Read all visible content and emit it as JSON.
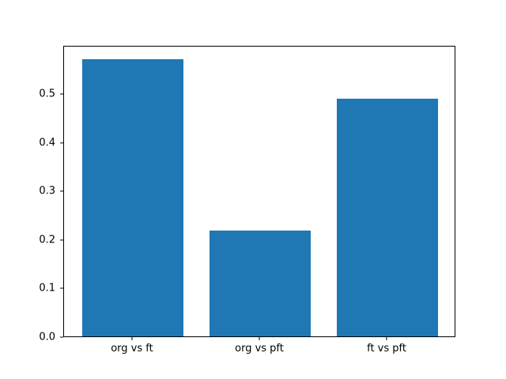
{
  "figure": {
    "background": "#ffffff",
    "plot_border_color": "#000000"
  },
  "chart_data": {
    "type": "bar",
    "title": "",
    "xlabel": "",
    "ylabel": "",
    "categories": [
      "org vs ft",
      "org vs pft",
      "ft vs pft"
    ],
    "values": [
      0.57,
      0.218,
      0.488
    ],
    "bar_color": "#1f77b4",
    "bar_width_fraction": 0.8,
    "ylim": [
      0,
      0.599
    ],
    "yticks": [
      0.0,
      0.1,
      0.2,
      0.3,
      0.4,
      0.5
    ],
    "ytick_decimals": 1,
    "grid": false,
    "legend_position": "none"
  }
}
